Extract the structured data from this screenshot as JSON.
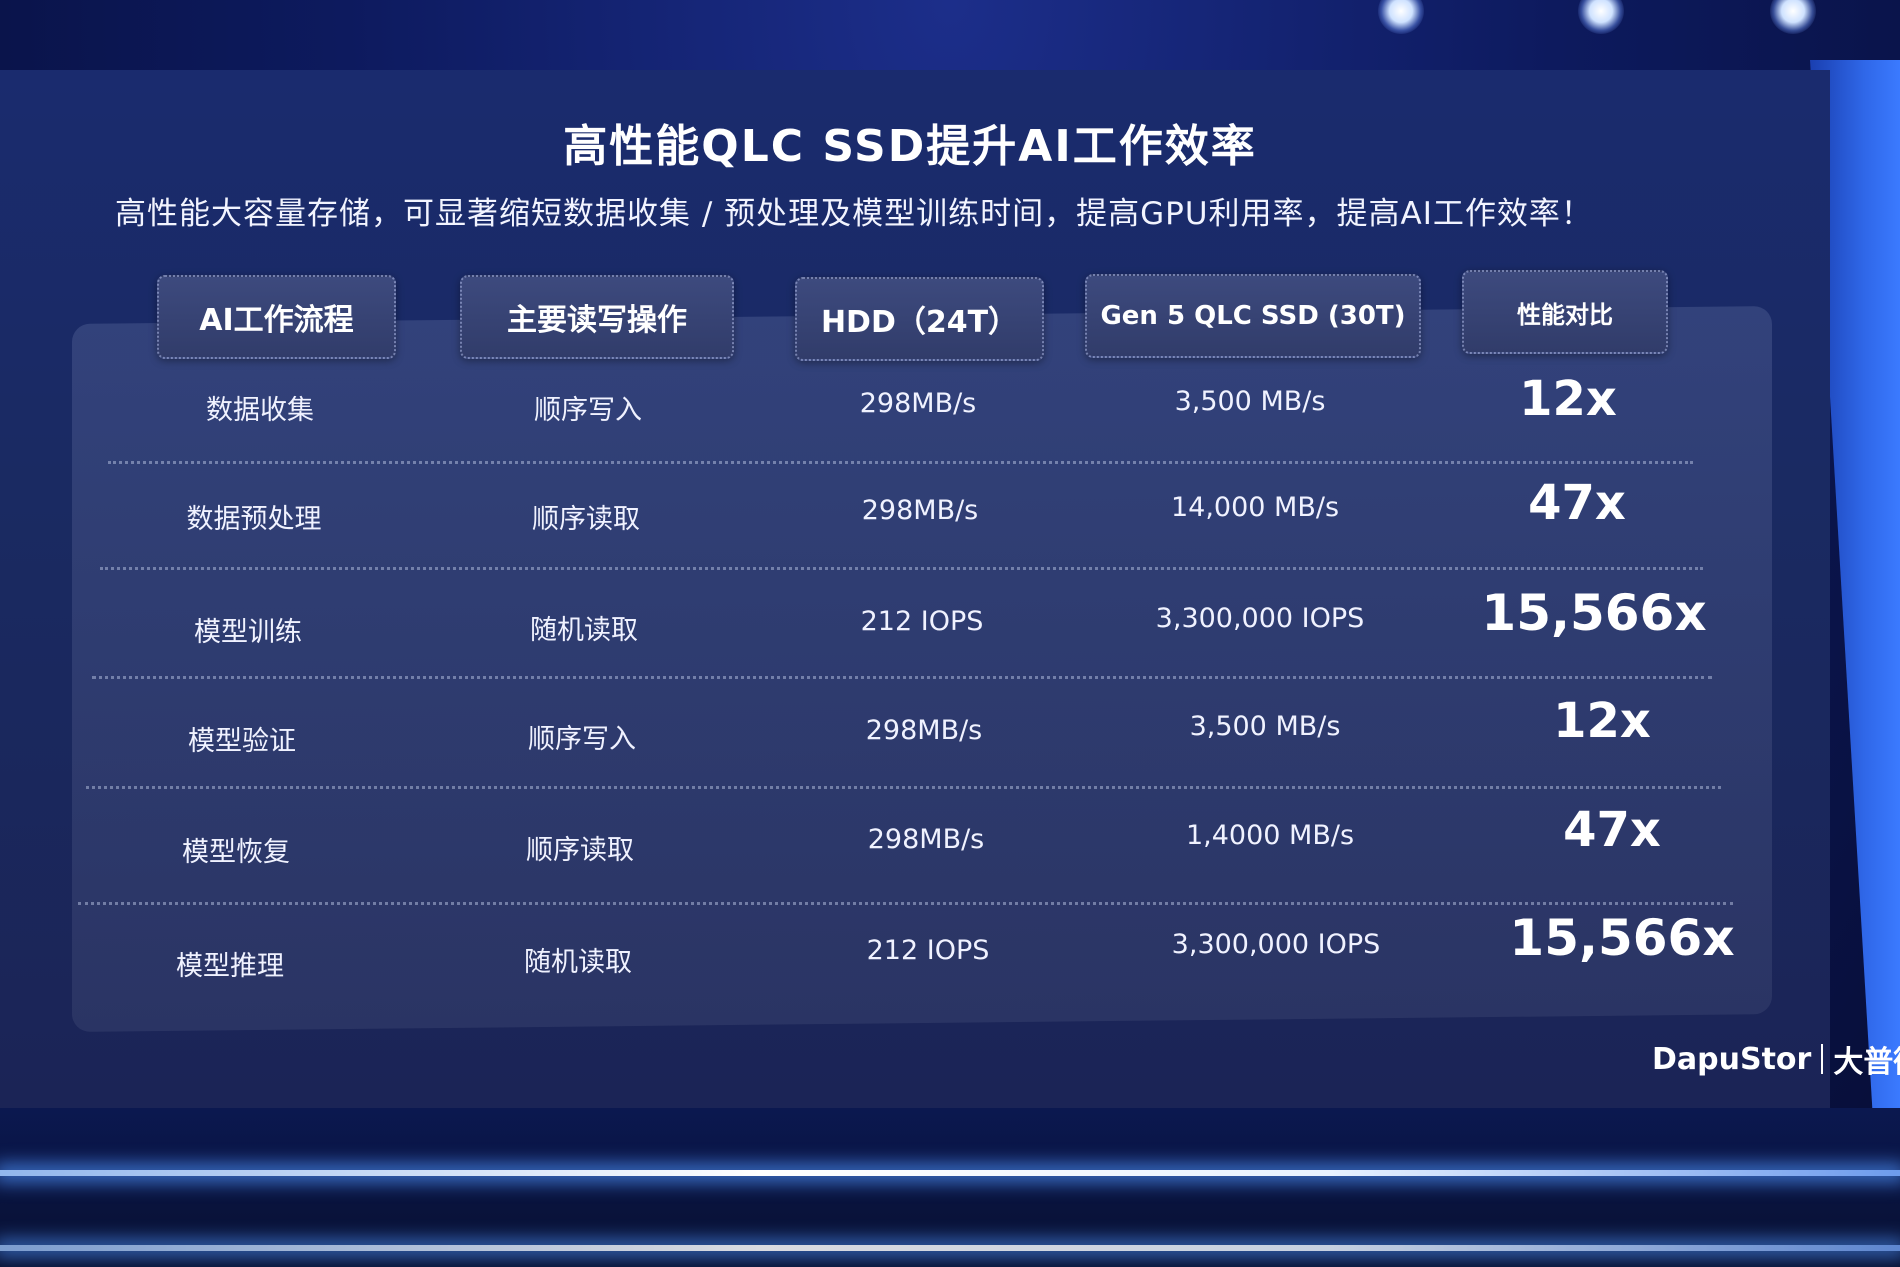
{
  "slide": {
    "title": "高性能QLC SSD提升AI工作效率",
    "subtitle": "高性能大容量存储，可显著缩短数据收集 / 预处理及模型训练时间，提高GPU利用率，提高AI工作效率！",
    "logo": {
      "brand": "DapuStor",
      "cn": "大普微"
    }
  },
  "table": {
    "headers": [
      "AI工作流程",
      "主要读写操作",
      "HDD（24T）",
      "Gen 5 QLC SSD (30T)",
      "性能对比"
    ],
    "rows": [
      {
        "workflow": "数据收集",
        "op": "顺序写入",
        "hdd": "298MB/s",
        "ssd": "3,500 MB/s",
        "ratio": "12x"
      },
      {
        "workflow": "数据预处理",
        "op": "顺序读取",
        "hdd": "298MB/s",
        "ssd": "14,000 MB/s",
        "ratio": "47x"
      },
      {
        "workflow": "模型训练",
        "op": "随机读取",
        "hdd": "212 IOPS",
        "ssd": "3,300,000 IOPS",
        "ratio": "15,566x"
      },
      {
        "workflow": "模型验证",
        "op": "顺序写入",
        "hdd": "298MB/s",
        "ssd": "3,500 MB/s",
        "ratio": "12x"
      },
      {
        "workflow": "模型恢复",
        "op": "顺序读取",
        "hdd": "298MB/s",
        "ssd": "1,4000 MB/s",
        "ratio": "47x"
      },
      {
        "workflow": "模型推理",
        "op": "随机读取",
        "hdd": "212 IOPS",
        "ssd": "3,300,000 IOPS",
        "ratio": "15,566x"
      }
    ]
  }
}
